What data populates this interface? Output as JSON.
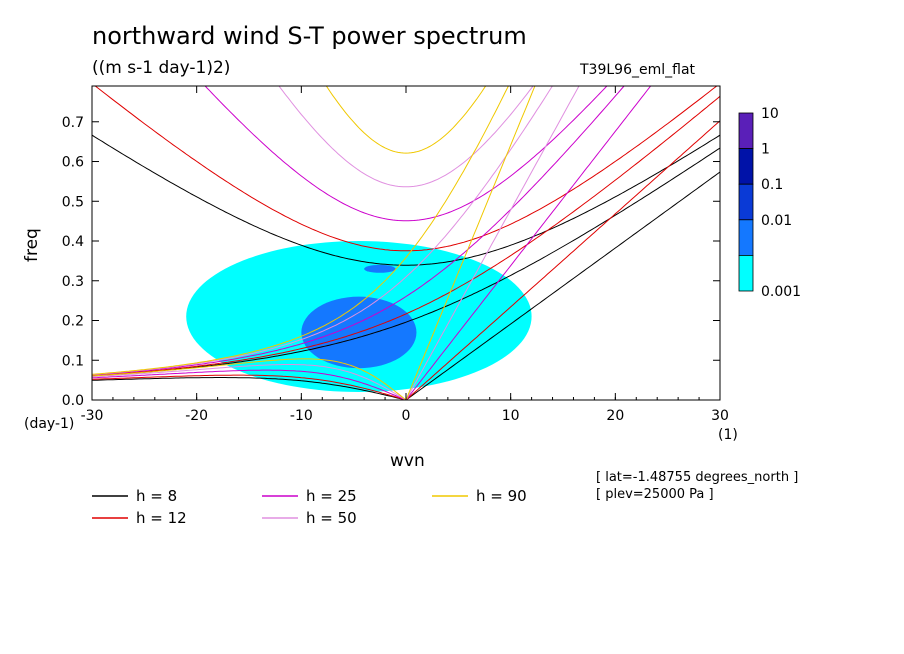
{
  "chart_data": {
    "type": "heatmap",
    "title": "northward wind S-T power spectrum",
    "units_label": "((m s-1 day-1)2)",
    "run_name": "T39L96_eml_flat",
    "xlabel": "wvn",
    "ylabel": "freq",
    "x_unit": "(1)",
    "y_unit": "(day-1)",
    "xlim": [
      -30,
      30
    ],
    "ylim": [
      0,
      0.79
    ],
    "xticks": [
      -30,
      -20,
      -10,
      0,
      10,
      20,
      30
    ],
    "xtick_labels": [
      "-30",
      "-20",
      "-10",
      "0",
      "10",
      "20",
      "30"
    ],
    "yticks": [
      0,
      0.1,
      0.2,
      0.3,
      0.4,
      0.5,
      0.6,
      0.7
    ],
    "ytick_labels": [
      "0.0",
      "0.1",
      "0.2",
      "0.3",
      "0.4",
      "0.5",
      "0.6",
      "0.7"
    ],
    "colorbar": {
      "levels": [
        "10",
        "1",
        "0.1",
        "0.01",
        "0.001"
      ],
      "colors": [
        "#5a1fb8",
        "#0012a8",
        "#0a3ad6",
        "#1478ff",
        "#00ffff"
      ]
    },
    "equivalent_depths": [
      {
        "label": "h =  8",
        "h": 8,
        "color": "#000000"
      },
      {
        "label": "h = 12",
        "h": 12,
        "color": "#e00000"
      },
      {
        "label": "h = 25",
        "h": 25,
        "color": "#cc00cc"
      },
      {
        "label": "h = 50",
        "h": 50,
        "color": "#e090e0"
      },
      {
        "label": "h = 90",
        "h": 90,
        "color": "#f0c800"
      }
    ],
    "spectrum_regions": [
      {
        "level": "0.001",
        "x_range": [
          -21,
          12
        ],
        "y_range": [
          0.02,
          0.4
        ]
      },
      {
        "level": "0.01",
        "x_range": [
          -10,
          1
        ],
        "y_range": [
          0.08,
          0.26
        ]
      },
      {
        "level": "0.01",
        "x_range": [
          -4,
          -1
        ],
        "y_range": [
          0.32,
          0.34
        ]
      }
    ],
    "annotations": [
      "[ lat=-1.48755 degrees_north ]",
      "[ plev=25000 Pa ]"
    ]
  }
}
